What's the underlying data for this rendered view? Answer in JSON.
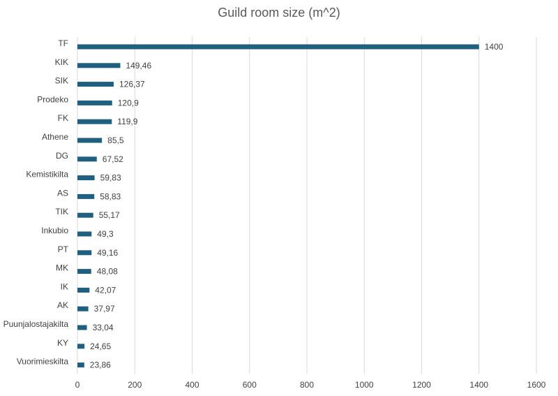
{
  "chart_data": {
    "type": "bar",
    "orientation": "horizontal",
    "title": "Guild room size (m^2)",
    "xlabel": "",
    "ylabel": "",
    "xlim": [
      0,
      1600
    ],
    "x_ticks": [
      0,
      200,
      400,
      600,
      800,
      1000,
      1200,
      1400,
      1600
    ],
    "grid": "vertical",
    "legend": "none",
    "bar_color": "#1f5f7f",
    "categories": [
      "TF",
      "KIK",
      "SIK",
      "Prodeko",
      "FK",
      "Athene",
      "DG",
      "Kemistikilta",
      "AS",
      "TIK",
      "Inkubio",
      "PT",
      "MK",
      "IK",
      "AK",
      "Puunjalostajakilta",
      "KY",
      "Vuorimieskilta"
    ],
    "values": [
      1400,
      149.46,
      126.37,
      120.9,
      119.9,
      85.5,
      67.52,
      59.83,
      58.83,
      55.17,
      49.3,
      49.16,
      48.08,
      42.07,
      37.97,
      33.04,
      24.65,
      23.86
    ],
    "data_labels": [
      "1400",
      "149,46",
      "126,37",
      "120,9",
      "119,9",
      "85,5",
      "67,52",
      "59,83",
      "58,83",
      "55,17",
      "49,3",
      "49,16",
      "48,08",
      "42,07",
      "37,97",
      "33,04",
      "24,65",
      "23,86"
    ]
  }
}
